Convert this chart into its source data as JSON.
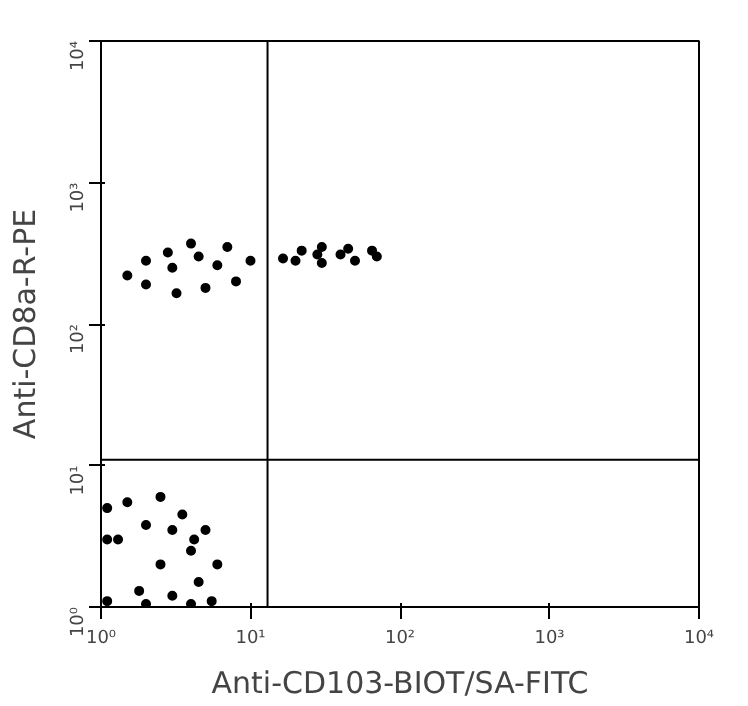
{
  "chart_data": {
    "type": "scatter",
    "xlabel": "Anti-CD103-BIOT/SA-FITC",
    "ylabel": "Anti-CD8a-R-PE",
    "log": "xy",
    "grid": false,
    "marker": "circle",
    "xlim": [
      1,
      10000
    ],
    "ylim": [
      1,
      10000
    ],
    "xticks": [
      {
        "value": 1,
        "label": "10⁰"
      },
      {
        "value": 10,
        "label": "10¹"
      },
      {
        "value": 100,
        "label": "10²"
      },
      {
        "value": 1000,
        "label": "10³"
      },
      {
        "value": 10000,
        "label": "10⁴"
      }
    ],
    "yticks": [
      {
        "value": 1,
        "label": "10⁰"
      },
      {
        "value": 10,
        "label": "10¹"
      },
      {
        "value": 100,
        "label": "10²"
      },
      {
        "value": 1000,
        "label": "10³"
      },
      {
        "value": 10000,
        "label": "10⁴"
      }
    ],
    "ref_lines": [
      {
        "axis": "x",
        "value": 13,
        "color": "#000000"
      },
      {
        "axis": "y",
        "value": 11,
        "color": "#000000"
      }
    ],
    "series": [
      {
        "color": "#000000",
        "x": [
          1.5,
          2,
          2.8,
          4,
          7,
          10,
          8,
          5,
          3.2,
          2,
          3,
          4.5,
          6
        ],
        "values": [
          220,
          280,
          320,
          370,
          350,
          280,
          200,
          180,
          165,
          190,
          250,
          300,
          260
        ]
      },
      {
        "color": "#000000",
        "x": [
          16.5,
          22,
          30,
          45,
          65,
          70,
          50,
          30,
          20,
          28,
          40
        ],
        "values": [
          290,
          330,
          350,
          340,
          330,
          300,
          280,
          270,
          280,
          310,
          310
        ]
      },
      {
        "color": "#000000",
        "x": [
          1.1,
          1.5,
          2.5,
          3.5,
          5,
          6,
          5.5,
          4,
          2,
          1.1,
          1.1,
          1.3,
          2,
          3,
          4,
          4.5,
          3,
          1.8,
          2.5,
          4.2
        ],
        "values": [
          5,
          5.5,
          6,
          4.5,
          3.5,
          2,
          1.1,
          1.05,
          1.05,
          1.1,
          3,
          3,
          3.8,
          3.5,
          2.5,
          1.5,
          1.2,
          1.3,
          2,
          3
        ]
      }
    ]
  }
}
